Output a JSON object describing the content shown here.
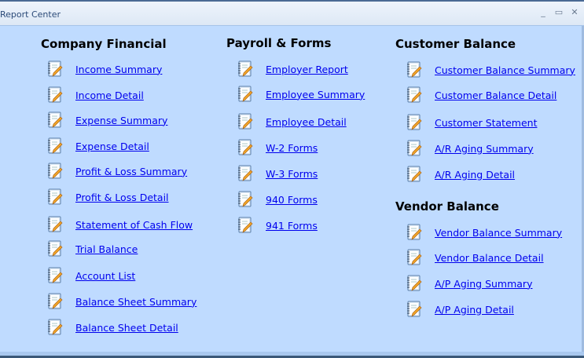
{
  "window": {
    "title": "Report Center",
    "minimize": "_",
    "maximize": "▭",
    "close": "✕"
  },
  "colors": {
    "background": "#bfdbff",
    "link": "#0000ee"
  },
  "columns": [
    {
      "heading": "Company Financial",
      "items": [
        "Income Summary",
        "Income Detail",
        "Expense Summary",
        "Expense Detail",
        "Profit & Loss Summary",
        "Profit & Loss Detail",
        "Statement of Cash Flow",
        "Trial Balance",
        "Account List",
        "Balance Sheet Summary",
        "Balance Sheet Detail"
      ]
    },
    {
      "heading": "Payroll & Forms",
      "items": [
        "Employer Report",
        "Employee Summary",
        "Employee Detail",
        "W-2 Forms",
        "W-3 Forms",
        "940 Forms",
        "941 Forms"
      ]
    },
    {
      "heading": "Customer Balance",
      "items": [
        "Customer Balance Summary",
        "Customer Balance Detail",
        "Customer Statement",
        "A/R Aging Summary",
        "A/R Aging Detail"
      ]
    },
    {
      "heading": "Vendor Balance",
      "items": [
        "Vendor Balance Summary",
        "Vendor Balance Detail",
        "A/P Aging Summary",
        "A/P Aging Detail"
      ]
    }
  ],
  "item_icon": "report-notebook-pencil-icon"
}
